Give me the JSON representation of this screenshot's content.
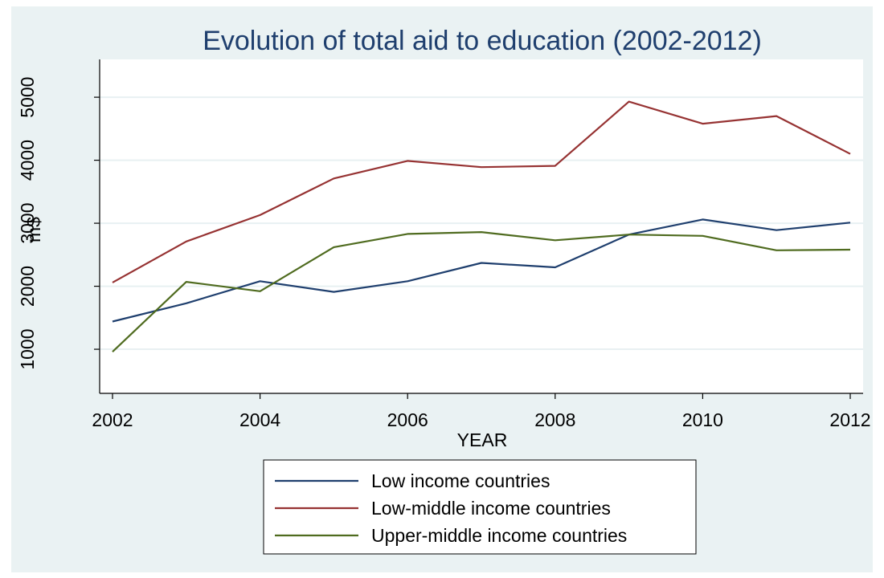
{
  "chart_data": {
    "type": "line",
    "title": "Evolution of total aid to education (2002-2012)",
    "xlabel": "YEAR",
    "ylabel": "m$",
    "x": [
      2002,
      2003,
      2004,
      2005,
      2006,
      2007,
      2008,
      2009,
      2010,
      2011,
      2012
    ],
    "xticks": [
      2002,
      2004,
      2006,
      2008,
      2010,
      2012
    ],
    "yticks": [
      1000,
      2000,
      3000,
      4000,
      5000
    ],
    "ylim": [
      300,
      5600
    ],
    "grid": true,
    "legend_position": "bottom",
    "series": [
      {
        "name": "Low income countries",
        "color": "#1f3f6e",
        "values": [
          1440,
          1730,
          2080,
          1910,
          2080,
          2370,
          2300,
          2820,
          3060,
          2890,
          3010
        ]
      },
      {
        "name": "Low-middle income countries",
        "color": "#963232",
        "values": [
          2060,
          2710,
          3130,
          3710,
          3990,
          3890,
          3910,
          4930,
          4580,
          4700,
          4100
        ]
      },
      {
        "name": "Upper-middle income countries",
        "color": "#4f6b1f",
        "values": [
          960,
          2070,
          1920,
          2620,
          2830,
          2860,
          2730,
          2820,
          2800,
          2570,
          2580
        ]
      }
    ],
    "colors": {
      "background": "#eaf2f3",
      "plot_background": "#ffffff",
      "grid": "#e8f0f2",
      "title": "#1f3f6e"
    }
  }
}
